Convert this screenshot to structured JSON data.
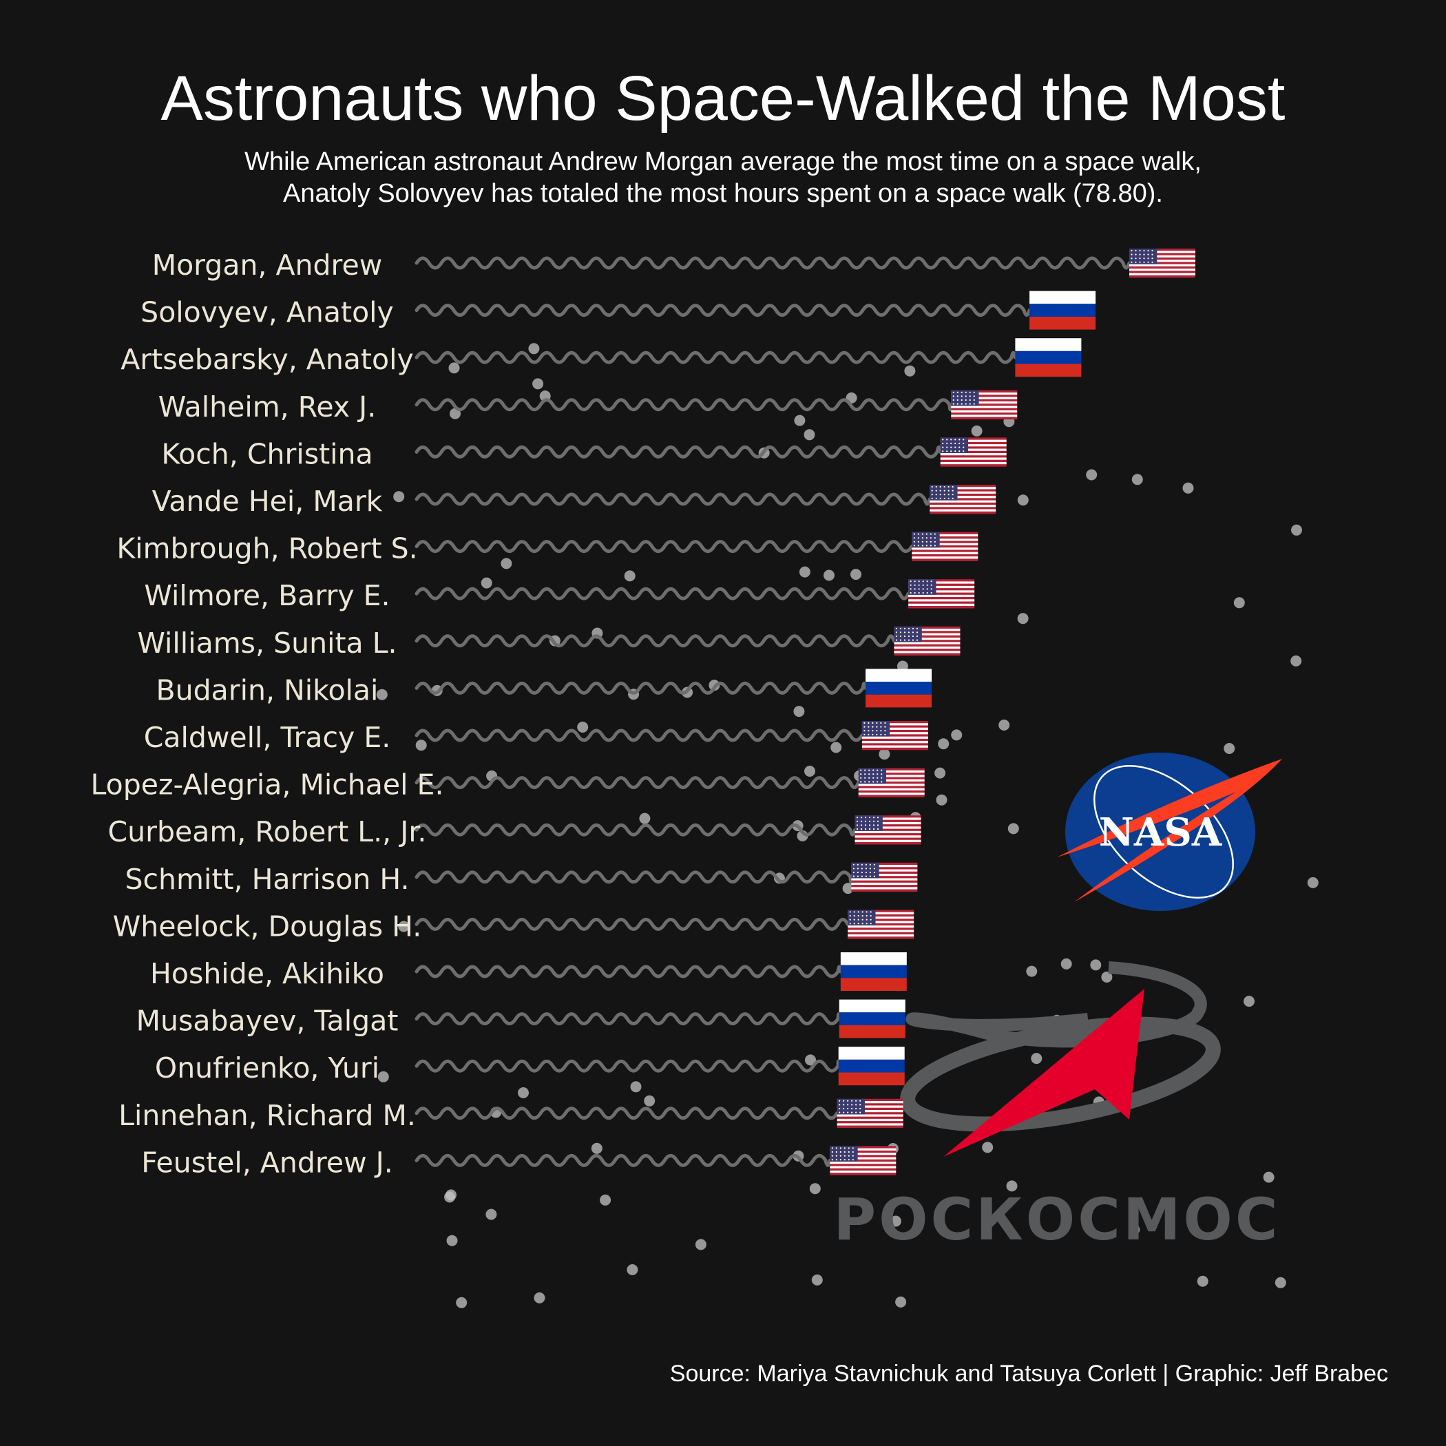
{
  "title": "Astronauts who Space-Walked the Most",
  "subtitle": {
    "line1": "While American astronaut Andrew Morgan average the most time on a space walk,",
    "line2": "Anatoly Solovyev has totaled the most hours spent on a space walk (78.80)."
  },
  "caption": "Source: Mariya Stavnichuk and Tatsuya Corlett | Graphic: Jeff Brabec",
  "logos": {
    "nasa_text": "NASA",
    "roscosmos_text": "РОСКОСМОС"
  },
  "colors": {
    "background": "#141414",
    "wave": "#6e6e6e",
    "label": "#ece6d6",
    "star": "#c4c4c4",
    "nasa_blue": "#0b3d91",
    "nasa_red": "#fc3d21",
    "roscosmos_red": "#e4002b",
    "roscosmos_gray": "#58595b"
  },
  "chart_data": {
    "type": "lollipop",
    "value_label": "average space walk duration (relative, axis not printed)",
    "marker": "country flag",
    "xlim": [
      0,
      10
    ],
    "series": [
      {
        "name": "Morgan, Andrew",
        "value": 10.0,
        "country": "USA"
      },
      {
        "name": "Solovyev, Anatoly",
        "value": 8.6,
        "country": "Russia"
      },
      {
        "name": "Artsebarsky, Anatoly",
        "value": 8.4,
        "country": "Russia"
      },
      {
        "name": "Walheim, Rex J.",
        "value": 7.5,
        "country": "USA"
      },
      {
        "name": "Koch, Christina",
        "value": 7.35,
        "country": "USA"
      },
      {
        "name": "Vande Hei, Mark",
        "value": 7.2,
        "country": "USA"
      },
      {
        "name": "Kimbrough, Robert S.",
        "value": 6.95,
        "country": "USA"
      },
      {
        "name": "Wilmore, Barry E.",
        "value": 6.9,
        "country": "USA"
      },
      {
        "name": "Williams, Sunita L.",
        "value": 6.7,
        "country": "USA"
      },
      {
        "name": "Budarin, Nikolai",
        "value": 6.3,
        "country": "Russia"
      },
      {
        "name": "Caldwell, Tracy E.",
        "value": 6.25,
        "country": "USA"
      },
      {
        "name": "Lopez-Alegria, Michael E.",
        "value": 6.2,
        "country": "USA"
      },
      {
        "name": "Curbeam, Robert L., Jr.",
        "value": 6.15,
        "country": "USA"
      },
      {
        "name": "Schmitt, Harrison H.",
        "value": 6.1,
        "country": "USA"
      },
      {
        "name": "Wheelock, Douglas H.",
        "value": 6.05,
        "country": "USA"
      },
      {
        "name": "Hoshide, Akihiko",
        "value": 5.95,
        "country": "Russia"
      },
      {
        "name": "Musabayev, Talgat",
        "value": 5.93,
        "country": "Russia"
      },
      {
        "name": "Onufrienko, Yuri",
        "value": 5.92,
        "country": "Russia"
      },
      {
        "name": "Linnehan, Richard M.",
        "value": 5.9,
        "country": "USA"
      },
      {
        "name": "Feustel, Andrew J.",
        "value": 5.8,
        "country": "USA"
      }
    ],
    "grid": false,
    "legend": "none"
  }
}
